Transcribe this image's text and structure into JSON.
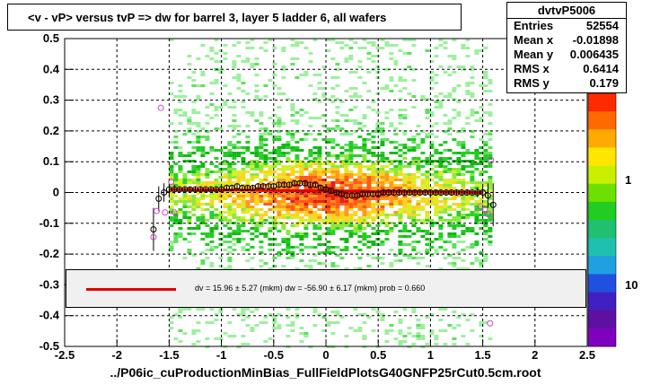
{
  "title": "<v - vP>       versus  tvP =>  dw for barrel 3, layer 5 ladder 6, all wafers",
  "stats": {
    "name": "dvtvP5006",
    "rows": [
      {
        "key": "Entries",
        "value": "52554"
      },
      {
        "key": "Mean x",
        "value": "-0.01898"
      },
      {
        "key": "Mean y",
        "value": "0.006435"
      },
      {
        "key": "RMS x",
        "value": "0.6414"
      },
      {
        "key": "RMS y",
        "value": "0.179"
      }
    ]
  },
  "legend_text": "dv =    15.96 ±   5.27 (mkm) dw =   -56.90 ±   6.17 (mkm) prob = 0.660",
  "xlabel": "../P06ic_cuProductionMinBias_FullFieldPlotsG40GNFP25rCut0.5cm.root",
  "colors": {
    "fit": "#e00000",
    "profile": "#000000",
    "outlier": "#cc44cc"
  },
  "chart_data": {
    "type": "heatmap",
    "xlim": [
      -2.5,
      2.5
    ],
    "ylim": [
      -0.5,
      0.5
    ],
    "x_ticks": [
      -2.5,
      -2,
      -1.5,
      -1,
      -0.5,
      0,
      0.5,
      1,
      1.5,
      2,
      2.5
    ],
    "y_ticks": [
      -0.5,
      -0.4,
      -0.3,
      -0.2,
      -0.1,
      0,
      0.1,
      0.2,
      0.3,
      0.4,
      0.5
    ],
    "colorbar_labels": [
      "1",
      "10"
    ],
    "profile": {
      "x": [
        -1.65,
        -1.6,
        -1.55,
        -1.5,
        -1.45,
        -1.4,
        -1.35,
        -1.3,
        -1.25,
        -1.2,
        -1.15,
        -1.1,
        -1.05,
        -1.0,
        -0.95,
        -0.9,
        -0.85,
        -0.8,
        -0.75,
        -0.7,
        -0.65,
        -0.6,
        -0.55,
        -0.5,
        -0.45,
        -0.4,
        -0.35,
        -0.3,
        -0.25,
        -0.2,
        -0.15,
        -0.1,
        -0.05,
        0.0,
        0.05,
        0.1,
        0.15,
        0.2,
        0.25,
        0.3,
        0.35,
        0.4,
        0.45,
        0.5,
        0.55,
        0.6,
        0.65,
        0.7,
        0.75,
        0.8,
        0.85,
        0.9,
        0.95,
        1.0,
        1.05,
        1.1,
        1.15,
        1.2,
        1.25,
        1.3,
        1.35,
        1.4,
        1.45,
        1.5,
        1.55,
        1.6
      ],
      "y": [
        -0.12,
        -0.02,
        0.0,
        0.01,
        0.01,
        0.01,
        0.01,
        0.01,
        0.01,
        0.01,
        0.01,
        0.01,
        0.01,
        0.01,
        0.015,
        0.015,
        0.02,
        0.015,
        0.015,
        0.015,
        0.02,
        0.02,
        0.02,
        0.02,
        0.025,
        0.025,
        0.025,
        0.03,
        0.03,
        0.03,
        0.025,
        0.025,
        0.015,
        0.01,
        0.005,
        0.0,
        -0.005,
        -0.01,
        -0.01,
        -0.01,
        -0.005,
        -0.005,
        -0.005,
        -0.005,
        0.0,
        0.0,
        0.0,
        0.0,
        0.0,
        0.0,
        0.0,
        0.0,
        0.0,
        0.0,
        0.0,
        0.0,
        0.0,
        0.0,
        0.0,
        0.0,
        0.0,
        0.0,
        0.0,
        0.0,
        -0.01,
        -0.04
      ],
      "err": [
        0.07,
        0.04,
        0.03,
        0.02,
        0.015,
        0.01,
        0.01,
        0.01,
        0.01,
        0.01,
        0.01,
        0.01,
        0.01,
        0.01,
        0.01,
        0.01,
        0.01,
        0.01,
        0.01,
        0.01,
        0.01,
        0.01,
        0.01,
        0.01,
        0.01,
        0.01,
        0.01,
        0.01,
        0.01,
        0.01,
        0.01,
        0.01,
        0.01,
        0.01,
        0.01,
        0.01,
        0.01,
        0.01,
        0.01,
        0.01,
        0.01,
        0.01,
        0.01,
        0.01,
        0.01,
        0.01,
        0.01,
        0.01,
        0.01,
        0.01,
        0.01,
        0.01,
        0.01,
        0.01,
        0.01,
        0.01,
        0.01,
        0.01,
        0.01,
        0.01,
        0.01,
        0.01,
        0.015,
        0.02,
        0.04,
        0.07
      ]
    },
    "outliers": {
      "x": [
        -1.58,
        -1.62,
        -1.54,
        -1.65,
        -1.48,
        -1.45,
        1.48,
        1.52,
        1.55,
        1.58,
        1.57
      ],
      "y": [
        0.275,
        -0.06,
        -0.065,
        -0.145,
        0.035,
        -0.065,
        -0.045,
        -0.055,
        -0.07,
        0.105,
        -0.425
      ]
    },
    "fit_line": {
      "x": [
        -1.5,
        1.5
      ],
      "y": [
        0.01,
        0.0
      ]
    }
  }
}
